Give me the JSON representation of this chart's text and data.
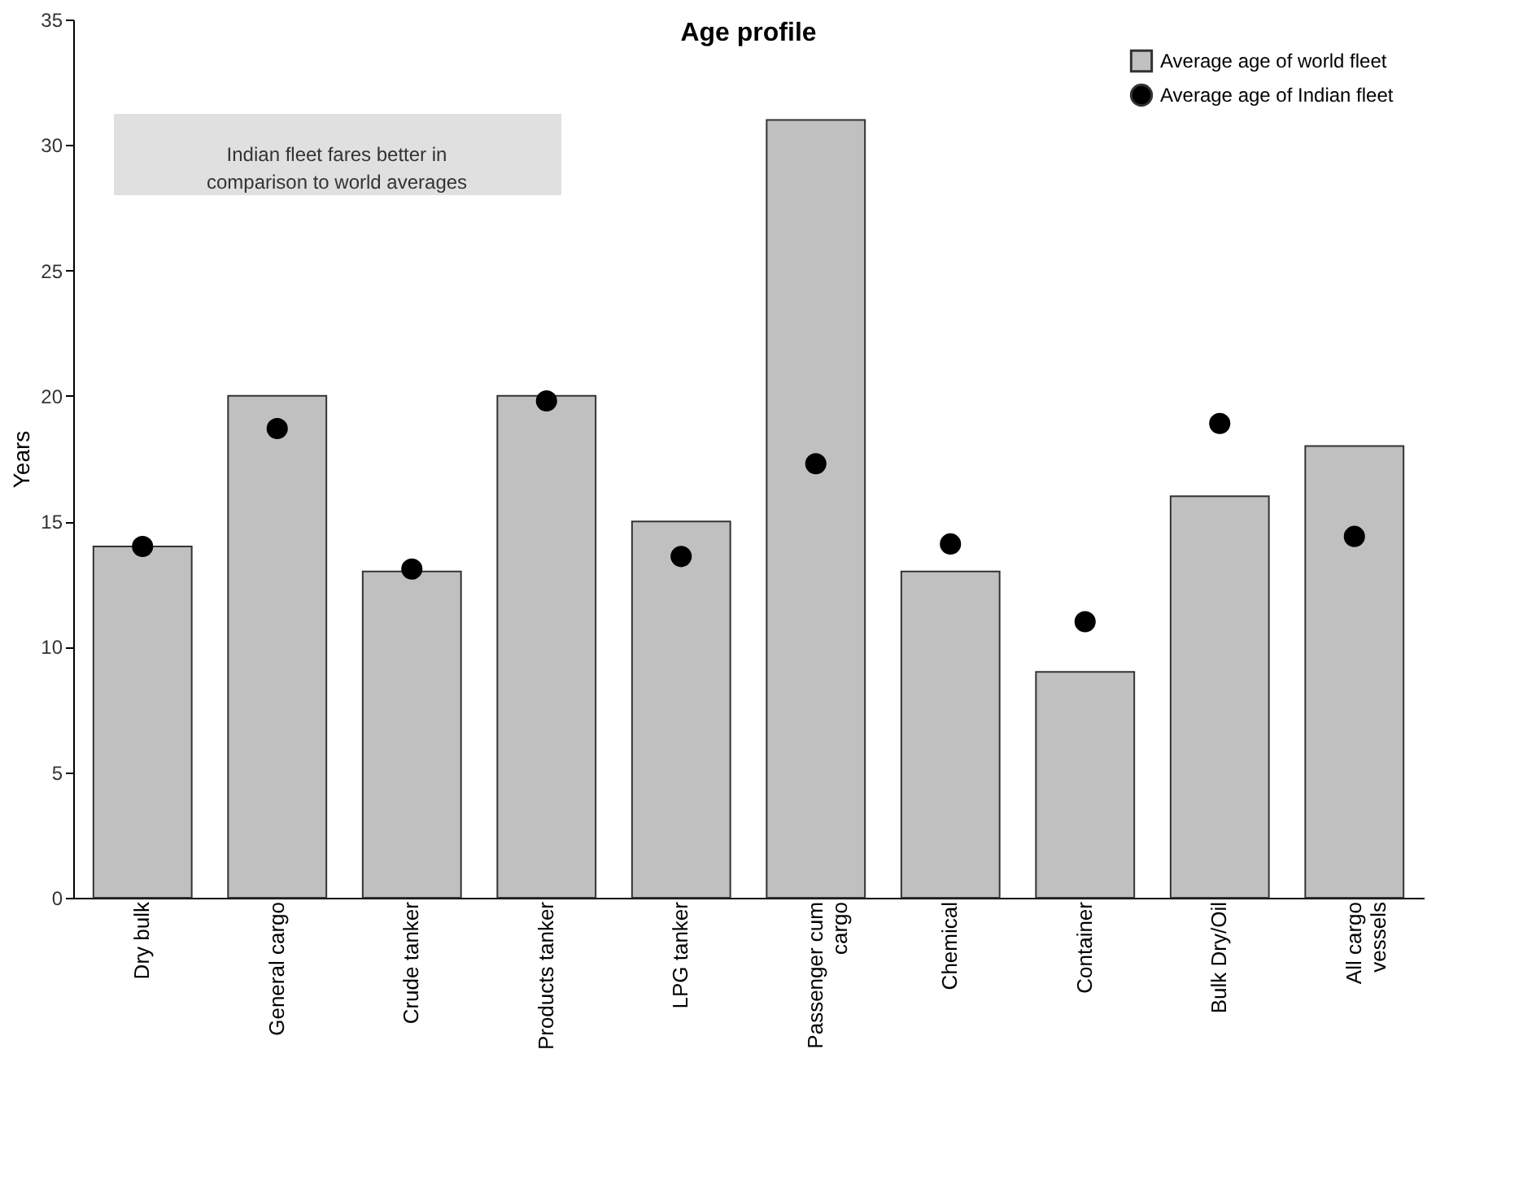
{
  "chart_data": {
    "type": "bar",
    "title": "Age profile",
    "ylabel": "Years",
    "categories": [
      "Dry bulk",
      "General cargo",
      "Crude tanker",
      "Products tanker",
      "LPG tanker",
      "Passenger cum cargo",
      "Chemical",
      "Container",
      "Bulk Dry/Oil",
      "All cargo vessels"
    ],
    "series": [
      {
        "name": "Average age of world fleet",
        "type": "bar",
        "color": "#c0c0c0",
        "values": [
          14,
          20,
          13,
          20,
          15,
          31,
          13,
          9,
          16,
          18
        ]
      },
      {
        "name": "Average age of Indian fleet",
        "type": "scatter",
        "color": "#000000",
        "marker": "circle",
        "values": [
          14,
          18.7,
          13.1,
          19.8,
          13.6,
          17.3,
          14.1,
          11,
          18.9,
          14.4
        ]
      }
    ],
    "ylim": [
      0,
      35
    ],
    "yticks": [
      0,
      5,
      10,
      15,
      20,
      25,
      30,
      35
    ],
    "grid": false,
    "legend": "top right",
    "annotations": [
      "Indian fleet fares better in comparison to world averages"
    ]
  }
}
